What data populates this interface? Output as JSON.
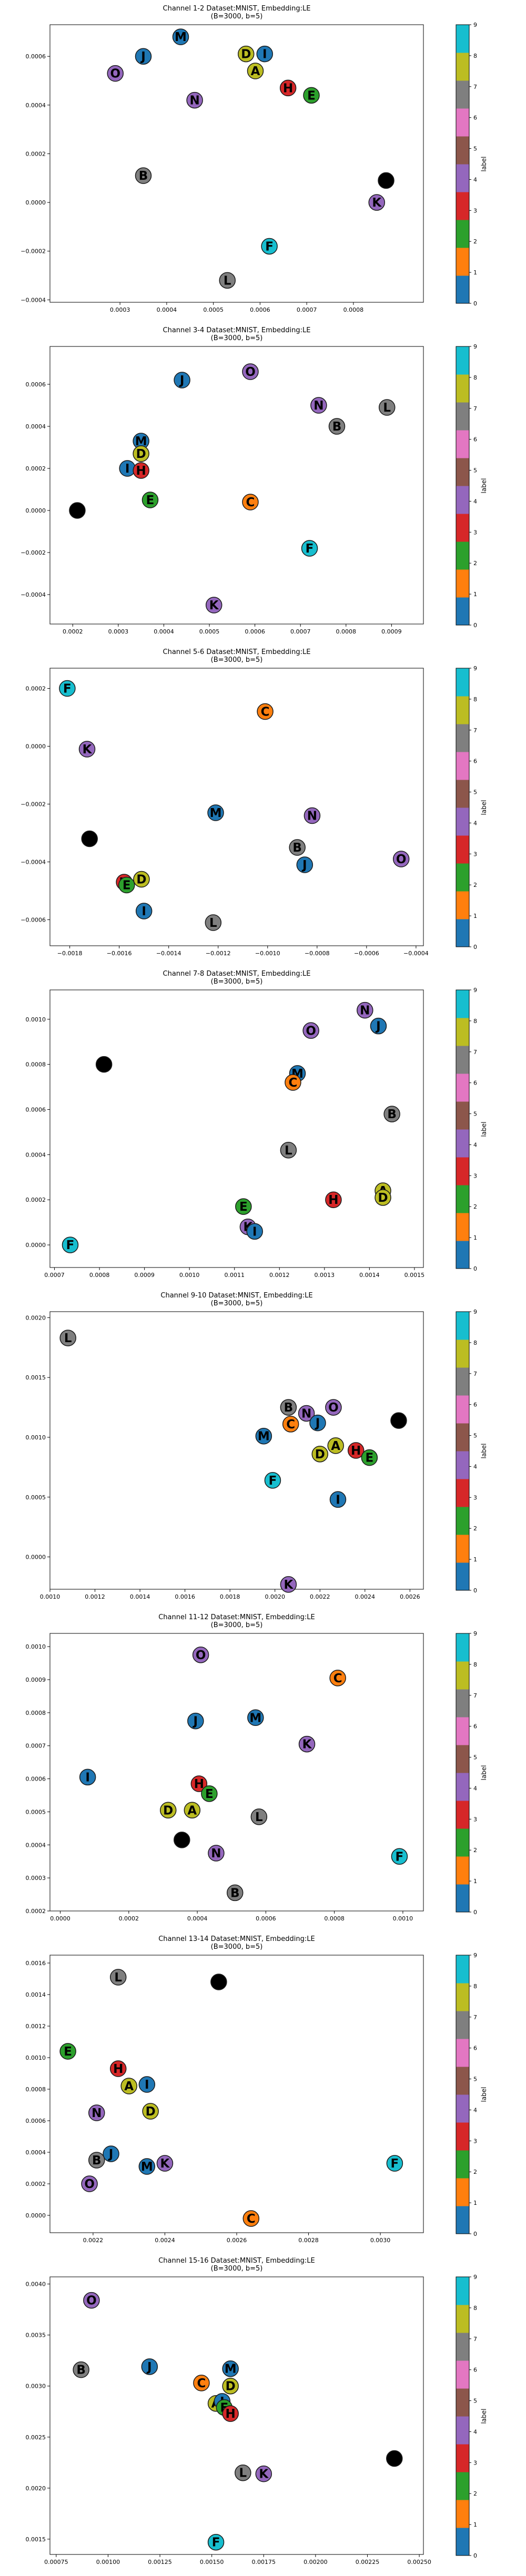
{
  "colorbar": {
    "label": "label",
    "ticks": [
      "0",
      "1",
      "2",
      "3",
      "4",
      "5",
      "6",
      "7",
      "8",
      "9"
    ],
    "colors": [
      "#1f77b4",
      "#ff7f0e",
      "#2ca02c",
      "#d62728",
      "#9467bd",
      "#8c564b",
      "#e377c2",
      "#7f7f7f",
      "#bcbd22",
      "#17becf"
    ]
  },
  "label_class_map": {
    "A": 8,
    "B": 7,
    "C": 1,
    "D": 8,
    "E": 2,
    "F": 9,
    "H": 3,
    "I": 0,
    "J": 0,
    "K": 4,
    "L": 7,
    "M": 0,
    "N": 4,
    "O": 4
  },
  "chart_data": [
    {
      "type": "scatter",
      "title": "Channel 1-2 Dataset:MNIST, Embedding:LE\n(B=3000, b=5)",
      "xlim": [
        0.00015,
        0.00095
      ],
      "ylim": [
        -0.00041,
        0.00073
      ],
      "xticks": [
        "0.0003",
        "0.0004",
        "0.0005",
        "0.0006",
        "0.0007",
        "0.0008"
      ],
      "xtick_values": [
        0.0003,
        0.0004,
        0.0005,
        0.0006,
        0.0007,
        0.0008
      ],
      "yticks": [
        "−0.0004",
        "−0.0002",
        "0.0000",
        "0.0002",
        "0.0004",
        "0.0006"
      ],
      "ytick_values": [
        -0.0004,
        -0.0002,
        0.0,
        0.0002,
        0.0004,
        0.0006
      ],
      "points": [
        {
          "label": "M",
          "x": 0.00043,
          "y": 0.00068
        },
        {
          "label": "J",
          "x": 0.00035,
          "y": 0.0006
        },
        {
          "label": "O",
          "x": 0.00029,
          "y": 0.00053
        },
        {
          "label": "D",
          "x": 0.00057,
          "y": 0.00061
        },
        {
          "label": "I",
          "x": 0.00061,
          "y": 0.00061
        },
        {
          "label": "A",
          "x": 0.00059,
          "y": 0.00054
        },
        {
          "label": "H",
          "x": 0.00066,
          "y": 0.00047
        },
        {
          "label": "E",
          "x": 0.00071,
          "y": 0.00044
        },
        {
          "label": "N",
          "x": 0.00046,
          "y": 0.00042
        },
        {
          "label": "B",
          "x": 0.00035,
          "y": 0.00011
        },
        {
          "label": "G",
          "x": 0.00087,
          "y": 9e-05
        },
        {
          "label": "K",
          "x": 0.00085,
          "y": 0.0
        },
        {
          "label": "F",
          "x": 0.00062,
          "y": -0.00018
        },
        {
          "label": "L",
          "x": 0.00053,
          "y": -0.00032
        }
      ]
    },
    {
      "type": "scatter",
      "title": "Channel 3-4 Dataset:MNIST, Embedding:LE\n(B=3000, b=5)",
      "xlim": [
        0.00015,
        0.00097
      ],
      "ylim": [
        -0.00054,
        0.00078
      ],
      "xticks": [
        "0.0002",
        "0.0003",
        "0.0004",
        "0.0005",
        "0.0006",
        "0.0007",
        "0.0008",
        "0.0009"
      ],
      "xtick_values": [
        0.0002,
        0.0003,
        0.0004,
        0.0005,
        0.0006,
        0.0007,
        0.0008,
        0.0009
      ],
      "yticks": [
        "−0.0004",
        "−0.0002",
        "0.0000",
        "0.0002",
        "0.0004",
        "0.0006"
      ],
      "ytick_values": [
        -0.0004,
        -0.0002,
        0.0,
        0.0002,
        0.0004,
        0.0006
      ],
      "points": [
        {
          "label": "O",
          "x": 0.00059,
          "y": 0.00066
        },
        {
          "label": "J",
          "x": 0.00044,
          "y": 0.00062
        },
        {
          "label": "N",
          "x": 0.00074,
          "y": 0.0005
        },
        {
          "label": "L",
          "x": 0.00089,
          "y": 0.00049
        },
        {
          "label": "B",
          "x": 0.00078,
          "y": 0.0004
        },
        {
          "label": "M",
          "x": 0.00035,
          "y": 0.00033
        },
        {
          "label": "D",
          "x": 0.00035,
          "y": 0.00027
        },
        {
          "label": "I",
          "x": 0.00032,
          "y": 0.0002
        },
        {
          "label": "H",
          "x": 0.00035,
          "y": 0.00019
        },
        {
          "label": "G",
          "x": 0.00021,
          "y": 0.0
        },
        {
          "label": "E",
          "x": 0.00037,
          "y": 5e-05
        },
        {
          "label": "C",
          "x": 0.00059,
          "y": 4e-05
        },
        {
          "label": "F",
          "x": 0.00072,
          "y": -0.00018
        },
        {
          "label": "K",
          "x": 0.00051,
          "y": -0.00045
        }
      ]
    },
    {
      "type": "scatter",
      "title": "Channel 5-6 Dataset:MNIST, Embedding:LE\n(B=3000, b=5)",
      "xlim": [
        -0.00188,
        -0.00037
      ],
      "ylim": [
        -0.00069,
        0.00027
      ],
      "xticks": [
        "−0.0018",
        "−0.0016",
        "−0.0014",
        "−0.0012",
        "−0.0010",
        "−0.0008",
        "−0.0006",
        "−0.0004"
      ],
      "xtick_values": [
        -0.0018,
        -0.0016,
        -0.0014,
        -0.0012,
        -0.001,
        -0.0008,
        -0.0006,
        -0.0004
      ],
      "yticks": [
        "−0.0006",
        "−0.0004",
        "−0.0002",
        "0.0000",
        "0.0002"
      ],
      "ytick_values": [
        -0.0006,
        -0.0004,
        -0.0002,
        0.0,
        0.0002
      ],
      "points": [
        {
          "label": "F",
          "x": -0.00181,
          "y": 0.0002
        },
        {
          "label": "C",
          "x": -0.00101,
          "y": 0.00012
        },
        {
          "label": "K",
          "x": -0.00173,
          "y": -1e-05
        },
        {
          "label": "M",
          "x": -0.00121,
          "y": -0.00023
        },
        {
          "label": "N",
          "x": -0.00082,
          "y": -0.00024
        },
        {
          "label": "G",
          "x": -0.00172,
          "y": -0.00032
        },
        {
          "label": "B",
          "x": -0.00088,
          "y": -0.00035
        },
        {
          "label": "O",
          "x": -0.00046,
          "y": -0.00039
        },
        {
          "label": "J",
          "x": -0.00085,
          "y": -0.00041
        },
        {
          "label": "D",
          "x": -0.00151,
          "y": -0.00046
        },
        {
          "label": "H",
          "x": -0.00158,
          "y": -0.00047
        },
        {
          "label": "E",
          "x": -0.00157,
          "y": -0.00048
        },
        {
          "label": "I",
          "x": -0.0015,
          "y": -0.00057
        },
        {
          "label": "L",
          "x": -0.00122,
          "y": -0.00061
        }
      ]
    },
    {
      "type": "scatter",
      "title": "Channel 7-8 Dataset:MNIST, Embedding:LE\n(B=3000, b=5)",
      "xlim": [
        0.00069,
        0.00152
      ],
      "ylim": [
        -0.0001,
        0.00113
      ],
      "xticks": [
        "0.0007",
        "0.0008",
        "0.0009",
        "0.0010",
        "0.0011",
        "0.0012",
        "0.0013",
        "0.0014",
        "0.0015"
      ],
      "xtick_values": [
        0.0007,
        0.0008,
        0.0009,
        0.001,
        0.0011,
        0.0012,
        0.0013,
        0.0014,
        0.0015
      ],
      "yticks": [
        "0.0000",
        "0.0002",
        "0.0004",
        "0.0006",
        "0.0008",
        "0.0010"
      ],
      "ytick_values": [
        0.0,
        0.0002,
        0.0004,
        0.0006,
        0.0008,
        0.001
      ],
      "points": [
        {
          "label": "N",
          "x": 0.00139,
          "y": 0.00104
        },
        {
          "label": "J",
          "x": 0.00142,
          "y": 0.00097
        },
        {
          "label": "O",
          "x": 0.00127,
          "y": 0.00095
        },
        {
          "label": "G",
          "x": 0.00081,
          "y": 0.0008
        },
        {
          "label": "M",
          "x": 0.00124,
          "y": 0.00076
        },
        {
          "label": "C",
          "x": 0.00123,
          "y": 0.00072
        },
        {
          "label": "B",
          "x": 0.00145,
          "y": 0.00058
        },
        {
          "label": "L",
          "x": 0.00122,
          "y": 0.00042
        },
        {
          "label": "A",
          "x": 0.00143,
          "y": 0.00024
        },
        {
          "label": "D",
          "x": 0.00143,
          "y": 0.00021
        },
        {
          "label": "H",
          "x": 0.00132,
          "y": 0.0002
        },
        {
          "label": "E",
          "x": 0.00112,
          "y": 0.00017
        },
        {
          "label": "K",
          "x": 0.00113,
          "y": 8e-05
        },
        {
          "label": "I",
          "x": 0.001145,
          "y": 6e-05
        },
        {
          "label": "F",
          "x": 0.000735,
          "y": 0.0
        }
      ]
    },
    {
      "type": "scatter",
      "title": "Channel 9-10 Dataset:MNIST, Embedding:LE\n(B=3000, b=5)",
      "xlim": [
        0.001,
        0.00266
      ],
      "ylim": [
        -0.00027,
        0.00205
      ],
      "xticks": [
        "0.0010",
        "0.0012",
        "0.0014",
        "0.0016",
        "0.0018",
        "0.0020",
        "0.0022",
        "0.0024",
        "0.0026"
      ],
      "xtick_values": [
        0.001,
        0.0012,
        0.0014,
        0.0016,
        0.0018,
        0.002,
        0.0022,
        0.0024,
        0.0026
      ],
      "yticks": [
        "0.0000",
        "0.0005",
        "0.0010",
        "0.0015",
        "0.0020"
      ],
      "ytick_values": [
        0.0,
        0.0005,
        0.001,
        0.0015,
        0.002
      ],
      "points": [
        {
          "label": "L",
          "x": 0.00108,
          "y": 0.00183
        },
        {
          "label": "B",
          "x": 0.00206,
          "y": 0.00125
        },
        {
          "label": "O",
          "x": 0.00226,
          "y": 0.00125
        },
        {
          "label": "N",
          "x": 0.00214,
          "y": 0.0012
        },
        {
          "label": "G",
          "x": 0.00255,
          "y": 0.00114
        },
        {
          "label": "C",
          "x": 0.00207,
          "y": 0.00111
        },
        {
          "label": "J",
          "x": 0.00219,
          "y": 0.00112
        },
        {
          "label": "M",
          "x": 0.00195,
          "y": 0.00101
        },
        {
          "label": "A",
          "x": 0.00227,
          "y": 0.00093
        },
        {
          "label": "H",
          "x": 0.00236,
          "y": 0.00089
        },
        {
          "label": "D",
          "x": 0.0022,
          "y": 0.00086
        },
        {
          "label": "E",
          "x": 0.00242,
          "y": 0.00083
        },
        {
          "label": "F",
          "x": 0.00199,
          "y": 0.00064
        },
        {
          "label": "I",
          "x": 0.00228,
          "y": 0.00048
        },
        {
          "label": "K",
          "x": 0.00206,
          "y": -0.00023
        }
      ]
    },
    {
      "type": "scatter",
      "title": "Channel 11-12 Dataset:MNIST, Embedding:LE\n(B=3000, b=5)",
      "xlim": [
        -3e-05,
        0.00106
      ],
      "ylim": [
        0.0002,
        0.00104
      ],
      "xticks": [
        "0.0000",
        "0.0002",
        "0.0004",
        "0.0006",
        "0.0008",
        "0.0010"
      ],
      "xtick_values": [
        0.0,
        0.0002,
        0.0004,
        0.0006,
        0.0008,
        0.001
      ],
      "yticks": [
        "0.0002",
        "0.0003",
        "0.0004",
        "0.0005",
        "0.0006",
        "0.0007",
        "0.0008",
        "0.0009",
        "0.0010"
      ],
      "ytick_values": [
        0.0002,
        0.0003,
        0.0004,
        0.0005,
        0.0006,
        0.0007,
        0.0008,
        0.0009,
        0.001
      ],
      "points": [
        {
          "label": "O",
          "x": 0.00041,
          "y": 0.000975
        },
        {
          "label": "C",
          "x": 0.00081,
          "y": 0.000905
        },
        {
          "label": "M",
          "x": 0.00057,
          "y": 0.000785
        },
        {
          "label": "J",
          "x": 0.000395,
          "y": 0.000775
        },
        {
          "label": "K",
          "x": 0.00072,
          "y": 0.000705
        },
        {
          "label": "I",
          "x": 8e-05,
          "y": 0.000605
        },
        {
          "label": "H",
          "x": 0.000405,
          "y": 0.000585
        },
        {
          "label": "E",
          "x": 0.000435,
          "y": 0.000555
        },
        {
          "label": "D",
          "x": 0.000315,
          "y": 0.000505
        },
        {
          "label": "A",
          "x": 0.000385,
          "y": 0.000505
        },
        {
          "label": "L",
          "x": 0.00058,
          "y": 0.000485
        },
        {
          "label": "G",
          "x": 0.000355,
          "y": 0.000415
        },
        {
          "label": "N",
          "x": 0.000455,
          "y": 0.000375
        },
        {
          "label": "F",
          "x": 0.00099,
          "y": 0.000365
        },
        {
          "label": "B",
          "x": 0.00051,
          "y": 0.000255
        }
      ]
    },
    {
      "type": "scatter",
      "title": "Channel 13-14 Dataset:MNIST, Embedding:LE\n(B=3000, b=5)",
      "xlim": [
        0.00208,
        0.00312
      ],
      "ylim": [
        -0.00011,
        0.00165
      ],
      "xticks": [
        "0.0022",
        "0.0024",
        "0.0026",
        "0.0028",
        "0.0030"
      ],
      "xtick_values": [
        0.0022,
        0.0024,
        0.0026,
        0.0028,
        0.003
      ],
      "yticks": [
        "0.0000",
        "0.0002",
        "0.0004",
        "0.0006",
        "0.0008",
        "0.0010",
        "0.0012",
        "0.0014",
        "0.0016"
      ],
      "ytick_values": [
        0.0,
        0.0002,
        0.0004,
        0.0006,
        0.0008,
        0.001,
        0.0012,
        0.0014,
        0.0016
      ],
      "points": [
        {
          "label": "L",
          "x": 0.00227,
          "y": 0.00151
        },
        {
          "label": "G",
          "x": 0.00255,
          "y": 0.00148
        },
        {
          "label": "E",
          "x": 0.00213,
          "y": 0.00104
        },
        {
          "label": "H",
          "x": 0.00227,
          "y": 0.00093
        },
        {
          "label": "A",
          "x": 0.0023,
          "y": 0.00082
        },
        {
          "label": "I",
          "x": 0.00235,
          "y": 0.00083
        },
        {
          "label": "N",
          "x": 0.00221,
          "y": 0.00065
        },
        {
          "label": "D",
          "x": 0.00236,
          "y": 0.00066
        },
        {
          "label": "J",
          "x": 0.00225,
          "y": 0.00039
        },
        {
          "label": "B",
          "x": 0.00221,
          "y": 0.00035
        },
        {
          "label": "M",
          "x": 0.00235,
          "y": 0.00031
        },
        {
          "label": "K",
          "x": 0.0024,
          "y": 0.00033
        },
        {
          "label": "F",
          "x": 0.00304,
          "y": 0.00033
        },
        {
          "label": "O",
          "x": 0.00219,
          "y": 0.0002
        },
        {
          "label": "C",
          "x": 0.00264,
          "y": -2e-05
        }
      ]
    },
    {
      "type": "scatter",
      "title": "Channel 15-16 Dataset:MNIST, Embedding:LE\n(B=3000, b=5)",
      "xlim": [
        0.00072,
        0.00252
      ],
      "ylim": [
        0.00135,
        0.00407
      ],
      "xticks": [
        "0.00075",
        "0.00100",
        "0.00125",
        "0.00150",
        "0.00175",
        "0.00200",
        "0.00225",
        "0.00250"
      ],
      "xtick_values": [
        0.00075,
        0.001,
        0.00125,
        0.0015,
        0.00175,
        0.002,
        0.00225,
        0.0025
      ],
      "yticks": [
        "0.0015",
        "0.0020",
        "0.0025",
        "0.0030",
        "0.0035",
        "0.0040"
      ],
      "ytick_values": [
        0.0015,
        0.002,
        0.0025,
        0.003,
        0.0035,
        0.004
      ],
      "points": [
        {
          "label": "O",
          "x": 0.00092,
          "y": 0.00384
        },
        {
          "label": "B",
          "x": 0.00087,
          "y": 0.00316
        },
        {
          "label": "J",
          "x": 0.0012,
          "y": 0.00319
        },
        {
          "label": "M",
          "x": 0.00159,
          "y": 0.00317
        },
        {
          "label": "C",
          "x": 0.00145,
          "y": 0.00303
        },
        {
          "label": "D",
          "x": 0.00159,
          "y": 0.003
        },
        {
          "label": "A",
          "x": 0.00152,
          "y": 0.00283
        },
        {
          "label": "I",
          "x": 0.00155,
          "y": 0.00285
        },
        {
          "label": "E",
          "x": 0.00156,
          "y": 0.00279
        },
        {
          "label": "H",
          "x": 0.00159,
          "y": 0.00273
        },
        {
          "label": "G",
          "x": 0.00238,
          "y": 0.00229
        },
        {
          "label": "L",
          "x": 0.00165,
          "y": 0.00215
        },
        {
          "label": "K",
          "x": 0.00175,
          "y": 0.00214
        },
        {
          "label": "F",
          "x": 0.00152,
          "y": 0.00147
        }
      ]
    }
  ]
}
